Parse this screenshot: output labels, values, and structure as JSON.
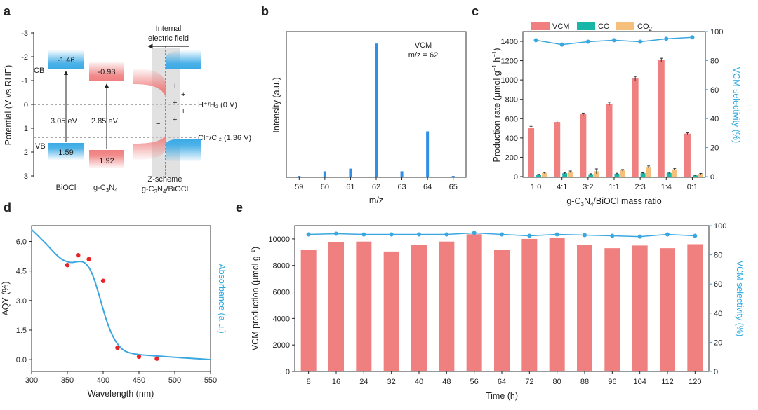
{
  "panel_labels": [
    "a",
    "b",
    "c",
    "d",
    "e"
  ],
  "colors": {
    "vcm": "#f07f7f",
    "co": "#18b5a9",
    "co2": "#f5bf7c",
    "selectivity": "#3aa7e0",
    "ms_bar": "#2f8fe8",
    "aqy_point": "#e8242b",
    "cb_blue": "#3aaae6",
    "vb_red": "#f07f7f"
  },
  "panel_a": {
    "ylabel": "Potential (V vs RHE)",
    "yticks": [
      "-3",
      "-2",
      "-1",
      "0",
      "1",
      "2",
      "3"
    ],
    "cb_label": "CB",
    "vb_label": "VB",
    "biocl": {
      "cb": "-1.46",
      "vb": "1.59",
      "gap": "3.05 eV",
      "name": "BiOCl"
    },
    "gcn": {
      "cb": "-0.93",
      "vb": "1.92",
      "gap": "2.85 eV",
      "name_main": "g-C",
      "name_sub1": "3",
      "name_mid": "N",
      "name_sub2": "4"
    },
    "field_label_1": "Internal",
    "field_label_2": "electric field",
    "h_ref": "H⁺/H₂ (0 V)",
    "cl_ref": "Cl⁻/Cl₂ (1.36 V)",
    "scheme_1": "Z-scheme",
    "scheme_2_main": "g-C",
    "scheme_2_sub1": "3",
    "scheme_2_mid": "N",
    "scheme_2_sub2": "4",
    "scheme_2_end": "/BiOCl",
    "minus": "−",
    "plus": "+"
  },
  "panel_c_text": {
    "ylabel_main": "Production rate (μmol g",
    "ylabel_sup1": "−1",
    "ylabel_mid": " h",
    "ylabel_sup2": "−1",
    "ylabel_end": ")",
    "xlabel_main": "g-C",
    "xlabel_sub1": "3",
    "xlabel_mid": "N",
    "xlabel_sub2": "4",
    "xlabel_end": "/BiOCl mass ratio",
    "co2_main": "CO",
    "co2_sub": "2"
  },
  "panel_e_text": {
    "ylabel_main": "VCM production (μmol g",
    "ylabel_sup": "−1",
    "ylabel_end": ")"
  },
  "chart_data": [
    {
      "id": "b",
      "type": "bar",
      "title": "",
      "xlabel": "m/z",
      "ylabel": "Intensity (a.u.)",
      "annotation": "VCM",
      "annotation2": "m/z = 62",
      "categories": [
        "59",
        "60",
        "61",
        "62",
        "63",
        "64",
        "65"
      ],
      "values": [
        0.5,
        4,
        6,
        100,
        4,
        34,
        0.5
      ],
      "ylim": [
        0,
        108
      ]
    },
    {
      "id": "c",
      "type": "bar",
      "title": "",
      "xlabel": "g-C3N4/BiOCl mass ratio",
      "ylabel": "Production rate (μmol g−1 h−1)",
      "y2label": "VCM selectivity (%)",
      "categories": [
        "1:0",
        "4:1",
        "3:2",
        "1:1",
        "2:3",
        "1:4",
        "0:1"
      ],
      "ylim": [
        0,
        1400
      ],
      "yticks": [
        "0",
        "200",
        "400",
        "600",
        "800",
        "1000",
        "1200",
        "1400"
      ],
      "y2lim": [
        0,
        100
      ],
      "y2ticks": [
        "0",
        "20",
        "40",
        "60",
        "80",
        "100"
      ],
      "legend": "top-left",
      "series": [
        {
          "name": "VCM",
          "values": [
            500,
            565,
            645,
            755,
            1015,
            1205,
            445
          ],
          "errors": [
            20,
            12,
            12,
            15,
            22,
            20,
            8
          ]
        },
        {
          "name": "CO",
          "values": [
            20,
            35,
            25,
            30,
            35,
            38,
            12
          ],
          "errors": [
            4,
            6,
            5,
            5,
            5,
            6,
            3
          ]
        },
        {
          "name": "CO2",
          "values": [
            38,
            50,
            55,
            65,
            100,
            75,
            28
          ],
          "errors": [
            5,
            8,
            25,
            8,
            10,
            10,
            5
          ]
        },
        {
          "name": "VCM selectivity",
          "axis": "right",
          "values": [
            94,
            91,
            93,
            94,
            93,
            95,
            96
          ]
        }
      ]
    },
    {
      "id": "d",
      "type": "line",
      "title": "",
      "xlabel": "Wavelength (nm)",
      "ylabel": "AQY (%)",
      "y2label": "Absorbance (a.u.)",
      "xlim": [
        300,
        550
      ],
      "xticks": [
        "300",
        "350",
        "400",
        "450",
        "500",
        "550"
      ],
      "ylim": [
        -0.6,
        6.8
      ],
      "yticks": [
        "0.0",
        "1.5",
        "3.0",
        "4.5",
        "6.0"
      ],
      "series": [
        {
          "name": "AQY",
          "type": "scatter",
          "x": [
            350,
            365,
            380,
            400,
            420,
            450,
            475
          ],
          "y": [
            4.8,
            5.3,
            5.1,
            4.0,
            0.6,
            0.15,
            0.05
          ]
        },
        {
          "name": "Absorbance",
          "type": "line",
          "x": [
            300,
            320,
            340,
            355,
            365,
            375,
            385,
            395,
            405,
            415,
            425,
            435,
            450,
            470,
            500,
            530,
            550
          ],
          "y": [
            6.6,
            5.9,
            5.1,
            4.9,
            5.0,
            4.95,
            4.4,
            3.2,
            1.9,
            1.05,
            0.55,
            0.35,
            0.25,
            0.2,
            0.12,
            0.05,
            0.0
          ]
        }
      ]
    },
    {
      "id": "e",
      "type": "bar",
      "title": "",
      "xlabel": "Time (h)",
      "ylabel": "VCM production (μmol g−1)",
      "y2label": "VCM selectivity (%)",
      "categories": [
        "8",
        "16",
        "24",
        "32",
        "40",
        "48",
        "56",
        "64",
        "72",
        "80",
        "88",
        "96",
        "104",
        "112",
        "120"
      ],
      "ylim": [
        0,
        11000
      ],
      "yticks": [
        "0",
        "2000",
        "4000",
        "6000",
        "8000",
        "10000"
      ],
      "y2lim": [
        0,
        100
      ],
      "y2ticks": [
        "0",
        "20",
        "40",
        "60",
        "80",
        "100"
      ],
      "series": [
        {
          "name": "VCM production",
          "values": [
            9200,
            9750,
            9800,
            9050,
            9550,
            9800,
            10350,
            9200,
            10000,
            10100,
            9550,
            9300,
            9500,
            9300,
            9600
          ]
        },
        {
          "name": "VCM selectivity",
          "axis": "right",
          "values": [
            94,
            94.5,
            94,
            94,
            94,
            94,
            95,
            94,
            93,
            94,
            93.5,
            93,
            92.5,
            94,
            93
          ]
        }
      ]
    }
  ]
}
